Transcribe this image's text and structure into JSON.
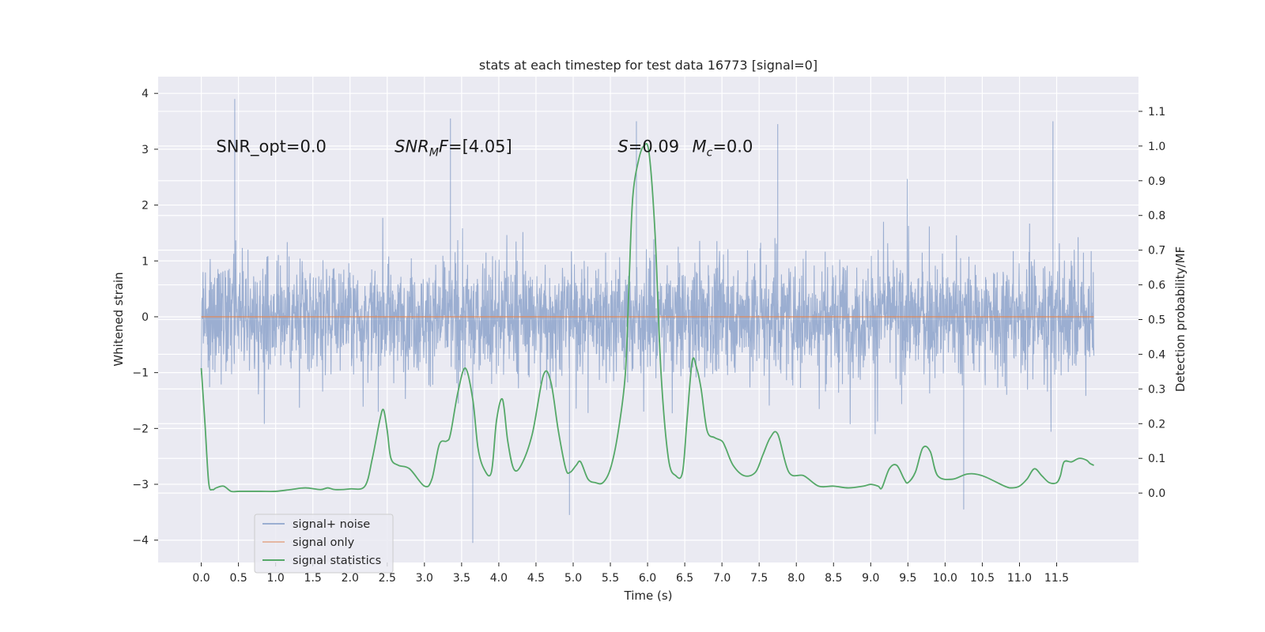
{
  "chart_data": {
    "type": "line",
    "title": "stats at each timestep for test data 16773 [signal=0]",
    "xlabel": "Time (s)",
    "ylabel": "Whitened strain",
    "y2label": "Detection probability/MF",
    "xlim": [
      -0.58,
      12.6
    ],
    "ylim": [
      -4.4,
      4.3
    ],
    "y2lim": [
      -0.2,
      1.2
    ],
    "x_ticks": [
      "0.0",
      "0.5",
      "1.0",
      "1.5",
      "2.0",
      "2.5",
      "3.0",
      "3.5",
      "4.0",
      "4.5",
      "5.0",
      "5.5",
      "6.0",
      "6.5",
      "7.0",
      "7.5",
      "8.0",
      "8.5",
      "9.0",
      "9.5",
      "10.0",
      "10.5",
      "11.0",
      "11.5"
    ],
    "y_ticks": [
      "4",
      "3",
      "2",
      "1",
      "0",
      "−1",
      "−2",
      "−3",
      "−4"
    ],
    "y2_ticks": [
      "1.1",
      "1.0",
      "0.9",
      "0.8",
      "0.7",
      "0.6",
      "0.5",
      "0.4",
      "0.3",
      "0.2",
      "0.1",
      "0.0"
    ],
    "grid": true,
    "legend_position": "lower-left",
    "annotations": [
      {
        "label": "SNR_opt=0.0",
        "x": 0.2,
        "y": 3.05
      },
      {
        "label": "SNR_MF=[4.05]",
        "x": 2.6,
        "y": 3.05
      },
      {
        "label": "S=0.09",
        "x": 5.6,
        "y": 3.05
      },
      {
        "label": "Mc=0.0",
        "x": 6.6,
        "y": 3.05
      }
    ],
    "series": [
      {
        "name": "signal+ noise",
        "axis": "left",
        "color": "#4c72b0",
        "t_start": 0.0,
        "t_end": 12.0,
        "envelope_peaks": [
          [
            0.45,
            3.9
          ],
          [
            3.35,
            3.55
          ],
          [
            3.65,
            -4.05
          ],
          [
            4.95,
            -3.55
          ],
          [
            5.85,
            3.5
          ],
          [
            7.75,
            3.45
          ],
          [
            10.25,
            -3.45
          ],
          [
            11.45,
            3.5
          ]
        ]
      },
      {
        "name": "signal only",
        "axis": "left",
        "color": "#dd8452",
        "x": [
          0.0,
          12.0
        ],
        "y": [
          0.0,
          0.0
        ]
      },
      {
        "name": "signal statistics",
        "axis": "right",
        "color": "#55a868",
        "x": [
          0.0,
          0.05,
          0.1,
          0.15,
          0.2,
          0.3,
          0.4,
          0.5,
          0.6,
          0.8,
          1.0,
          1.2,
          1.4,
          1.6,
          1.7,
          1.8,
          2.0,
          2.2,
          2.3,
          2.4,
          2.45,
          2.5,
          2.55,
          2.65,
          2.8,
          3.0,
          3.1,
          3.2,
          3.3,
          3.35,
          3.45,
          3.55,
          3.65,
          3.72,
          3.8,
          3.9,
          3.97,
          4.05,
          4.12,
          4.2,
          4.3,
          4.45,
          4.6,
          4.7,
          4.8,
          4.9,
          4.96,
          5.04,
          5.1,
          5.2,
          5.3,
          5.4,
          5.5,
          5.6,
          5.7,
          5.75,
          5.8,
          5.88,
          5.95,
          6.02,
          6.1,
          6.18,
          6.28,
          6.38,
          6.47,
          6.53,
          6.6,
          6.66,
          6.72,
          6.8,
          6.9,
          7.0,
          7.05,
          7.15,
          7.3,
          7.45,
          7.55,
          7.65,
          7.75,
          7.9,
          8.1,
          8.3,
          8.5,
          8.7,
          8.9,
          9.0,
          9.1,
          9.15,
          9.25,
          9.35,
          9.45,
          9.5,
          9.6,
          9.7,
          9.8,
          9.9,
          10.1,
          10.3,
          10.5,
          10.8,
          10.9,
          11.0,
          11.1,
          11.2,
          11.3,
          11.4,
          11.5,
          11.55,
          11.6,
          11.7,
          11.8,
          11.9,
          11.95,
          12.0
        ],
        "y": [
          0.36,
          0.2,
          0.03,
          0.01,
          0.015,
          0.02,
          0.005,
          0.005,
          0.005,
          0.005,
          0.005,
          0.01,
          0.015,
          0.01,
          0.015,
          0.01,
          0.012,
          0.02,
          0.1,
          0.21,
          0.24,
          0.18,
          0.1,
          0.08,
          0.07,
          0.02,
          0.04,
          0.14,
          0.15,
          0.17,
          0.29,
          0.36,
          0.27,
          0.13,
          0.07,
          0.06,
          0.21,
          0.27,
          0.15,
          0.07,
          0.08,
          0.17,
          0.34,
          0.32,
          0.18,
          0.07,
          0.06,
          0.08,
          0.09,
          0.04,
          0.03,
          0.03,
          0.07,
          0.17,
          0.34,
          0.6,
          0.85,
          0.96,
          1.0,
          0.98,
          0.75,
          0.35,
          0.1,
          0.05,
          0.06,
          0.21,
          0.38,
          0.36,
          0.3,
          0.18,
          0.16,
          0.15,
          0.13,
          0.08,
          0.05,
          0.06,
          0.11,
          0.16,
          0.17,
          0.06,
          0.05,
          0.02,
          0.02,
          0.015,
          0.02,
          0.025,
          0.02,
          0.015,
          0.07,
          0.08,
          0.04,
          0.03,
          0.06,
          0.13,
          0.12,
          0.05,
          0.04,
          0.055,
          0.05,
          0.02,
          0.015,
          0.02,
          0.04,
          0.07,
          0.05,
          0.03,
          0.03,
          0.05,
          0.09,
          0.09,
          0.1,
          0.095,
          0.085,
          0.08
        ]
      }
    ]
  }
}
